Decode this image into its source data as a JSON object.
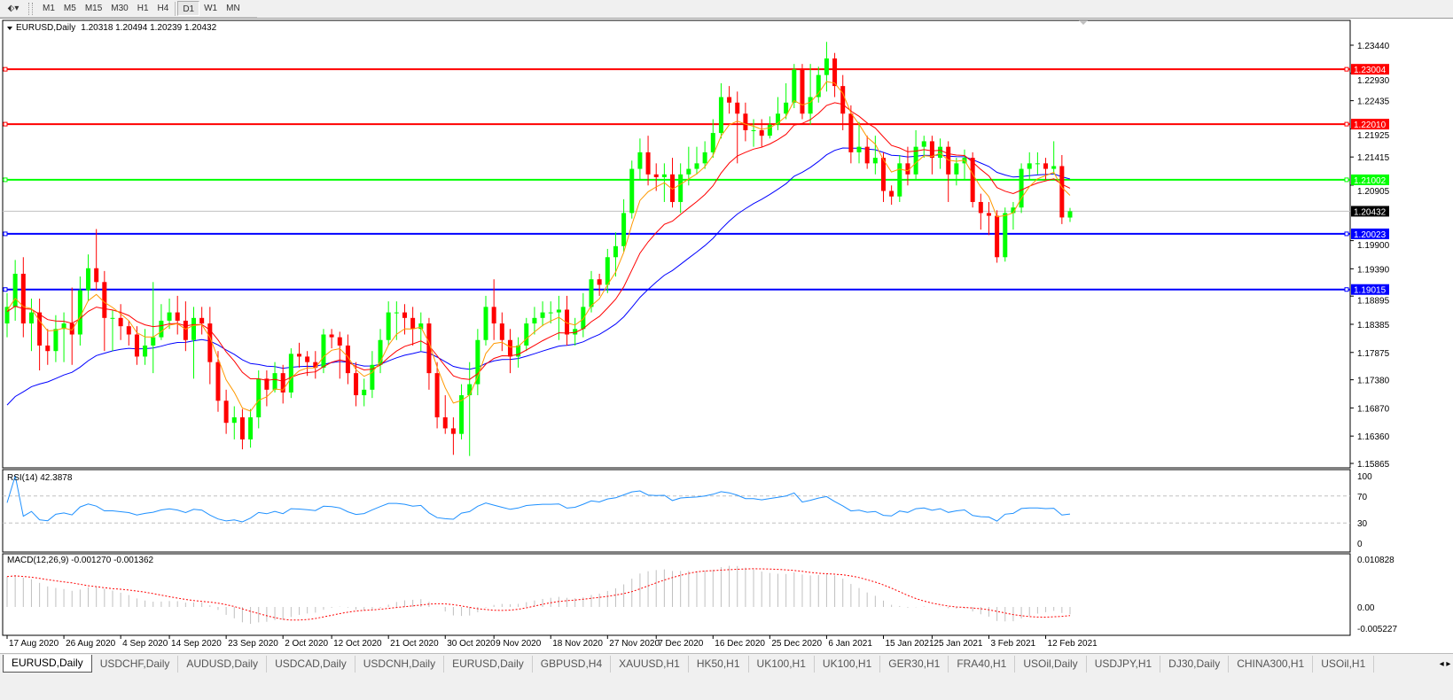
{
  "toolbar": {
    "icons": [
      "cursor-arrow-icon",
      "dropdown-arrow-icon"
    ],
    "timeframes": [
      "M1",
      "M5",
      "M15",
      "M30",
      "H1",
      "H4",
      "D1",
      "W1",
      "MN"
    ],
    "active_timeframe": "D1"
  },
  "chart": {
    "title": "EURUSD,Daily",
    "ohlc_text": "1.20318 1.20494 1.20239 1.20432",
    "colors": {
      "bull": "#00ff00",
      "bear": "#ff0000",
      "ma_fast": "#ff9900",
      "ma_mid": "#ff0000",
      "ma_slow": "#0000ff",
      "rsi": "#1e90ff",
      "macd_hist": "#c0c0c0",
      "macd_signal": "#ff0000",
      "bid_line": "#c0c0c0"
    },
    "price_ticks": [
      "1.23440",
      "1.22930",
      "1.22435",
      "1.21925",
      "1.21415",
      "1.20905",
      "1.19900",
      "1.19390",
      "1.18895",
      "1.18385",
      "1.17875",
      "1.17380",
      "1.16870",
      "1.16360",
      "1.15865"
    ],
    "hlines": [
      {
        "price": "1.23004",
        "color": "#ff0000"
      },
      {
        "price": "1.22010",
        "color": "#ff0000"
      },
      {
        "price": "1.21002",
        "color": "#00ff00"
      },
      {
        "price": "1.20023",
        "color": "#0000ff"
      },
      {
        "price": "1.19015",
        "color": "#0000ff"
      }
    ],
    "bid": {
      "price": "1.20432",
      "color": "#000000"
    }
  },
  "rsi": {
    "label": "RSI(14) 42.3878",
    "period": 14,
    "levels": [
      "100",
      "70",
      "30",
      "0"
    ]
  },
  "macd": {
    "label": "MACD(12,26,9) -0.001270 -0.001362",
    "fast": 12,
    "slow": 26,
    "signal": 9,
    "ticks": [
      "0.010828",
      "0.00",
      "-0.005227"
    ]
  },
  "chart_data": {
    "type": "candlestick",
    "symbol": "EURUSD",
    "timeframe": "Daily",
    "ylim": [
      1.15865,
      1.2344
    ],
    "x_tick_labels": [
      "17 Aug 2020",
      "26 Aug 2020",
      "4 Sep 2020",
      "14 Sep 2020",
      "23 Sep 2020",
      "2 Oct 2020",
      "12 Oct 2020",
      "21 Oct 2020",
      "30 Oct 2020",
      "9 Nov 2020",
      "18 Nov 2020",
      "27 Nov 2020",
      "7 Dec 2020",
      "16 Dec 2020",
      "25 Dec 2020",
      "6 Jan 2021",
      "15 Jan 2021",
      "25 Jan 2021",
      "3 Feb 2021",
      "12 Feb 2021"
    ],
    "candles": [
      [
        "17 Aug 2020",
        1.184,
        1.1895,
        1.1815,
        1.187
      ],
      [
        "18 Aug 2020",
        1.187,
        1.1955,
        1.1845,
        1.193
      ],
      [
        "19 Aug 2020",
        1.193,
        1.196,
        1.1815,
        1.184
      ],
      [
        "20 Aug 2020",
        1.184,
        1.1885,
        1.179,
        1.186
      ],
      [
        "21 Aug 2020",
        1.186,
        1.1885,
        1.1755,
        1.18
      ],
      [
        "24 Aug 2020",
        1.18,
        1.183,
        1.1765,
        1.179
      ],
      [
        "25 Aug 2020",
        1.179,
        1.1855,
        1.177,
        1.183
      ],
      [
        "26 Aug 2020",
        1.183,
        1.186,
        1.177,
        1.184
      ],
      [
        "27 Aug 2020",
        1.184,
        1.1905,
        1.1765,
        1.182
      ],
      [
        "28 Aug 2020",
        1.182,
        1.1925,
        1.18,
        1.19
      ],
      [
        "31 Aug 2020",
        1.19,
        1.1965,
        1.188,
        1.194
      ],
      [
        "1 Sep 2020",
        1.194,
        1.2011,
        1.19,
        1.1915
      ],
      [
        "2 Sep 2020",
        1.1915,
        1.1935,
        1.179,
        1.185
      ],
      [
        "3 Sep 2020",
        1.185,
        1.1865,
        1.179,
        1.185
      ],
      [
        "4 Sep 2020",
        1.185,
        1.1875,
        1.181,
        1.1835
      ],
      [
        "7 Sep 2020",
        1.1835,
        1.1845,
        1.18,
        1.182
      ],
      [
        "8 Sep 2020",
        1.182,
        1.1835,
        1.1765,
        1.178
      ],
      [
        "9 Sep 2020",
        1.178,
        1.183,
        1.1765,
        1.18
      ],
      [
        "10 Sep 2020",
        1.18,
        1.1915,
        1.175,
        1.1815
      ],
      [
        "11 Sep 2020",
        1.1815,
        1.1875,
        1.181,
        1.1845
      ],
      [
        "14 Sep 2020",
        1.1845,
        1.1885,
        1.183,
        1.186
      ],
      [
        "15 Sep 2020",
        1.186,
        1.189,
        1.182,
        1.1845
      ],
      [
        "16 Sep 2020",
        1.1845,
        1.188,
        1.179,
        1.181
      ],
      [
        "17 Sep 2020",
        1.181,
        1.187,
        1.174,
        1.185
      ],
      [
        "18 Sep 2020",
        1.185,
        1.187,
        1.182,
        1.184
      ],
      [
        "21 Sep 2020",
        1.184,
        1.187,
        1.173,
        1.177
      ],
      [
        "22 Sep 2020",
        1.177,
        1.179,
        1.168,
        1.17
      ],
      [
        "23 Sep 2020",
        1.17,
        1.172,
        1.164,
        1.166
      ],
      [
        "24 Sep 2020",
        1.166,
        1.169,
        1.163,
        1.167
      ],
      [
        "25 Sep 2020",
        1.167,
        1.1685,
        1.1612,
        1.163
      ],
      [
        "28 Sep 2020",
        1.163,
        1.1685,
        1.1615,
        1.167
      ],
      [
        "29 Sep 2020",
        1.167,
        1.1755,
        1.165,
        1.174
      ],
      [
        "30 Sep 2020",
        1.174,
        1.1755,
        1.169,
        1.172
      ],
      [
        "1 Oct 2020",
        1.172,
        1.177,
        1.1715,
        1.175
      ],
      [
        "2 Oct 2020",
        1.175,
        1.1765,
        1.1695,
        1.1715
      ],
      [
        "5 Oct 2020",
        1.1715,
        1.1795,
        1.1705,
        1.1785
      ],
      [
        "6 Oct 2020",
        1.1785,
        1.1805,
        1.176,
        1.178
      ],
      [
        "7 Oct 2020",
        1.178,
        1.179,
        1.1745,
        1.177
      ],
      [
        "8 Oct 2020",
        1.177,
        1.179,
        1.174,
        1.176
      ],
      [
        "9 Oct 2020",
        1.176,
        1.183,
        1.175,
        1.182
      ],
      [
        "12 Oct 2020",
        1.182,
        1.183,
        1.1795,
        1.1815
      ],
      [
        "13 Oct 2020",
        1.1815,
        1.1825,
        1.174,
        1.18
      ],
      [
        "14 Oct 2020",
        1.18,
        1.182,
        1.173,
        1.175
      ],
      [
        "15 Oct 2020",
        1.175,
        1.177,
        1.169,
        1.171
      ],
      [
        "16 Oct 2020",
        1.171,
        1.174,
        1.169,
        1.172
      ],
      [
        "19 Oct 2020",
        1.172,
        1.179,
        1.1705,
        1.1765
      ],
      [
        "20 Oct 2020",
        1.1765,
        1.183,
        1.175,
        1.181
      ],
      [
        "21 Oct 2020",
        1.181,
        1.188,
        1.18,
        1.186
      ],
      [
        "22 Oct 2020",
        1.186,
        1.188,
        1.181,
        1.186
      ],
      [
        "23 Oct 2020",
        1.186,
        1.1875,
        1.182,
        1.185
      ],
      [
        "26 Oct 2020",
        1.185,
        1.187,
        1.18,
        1.183
      ],
      [
        "27 Oct 2020",
        1.183,
        1.186,
        1.179,
        1.184
      ],
      [
        "28 Oct 2020",
        1.184,
        1.185,
        1.172,
        1.175
      ],
      [
        "29 Oct 2020",
        1.175,
        1.177,
        1.165,
        1.167
      ],
      [
        "30 Oct 2020",
        1.167,
        1.171,
        1.164,
        1.165
      ],
      [
        "2 Nov 2020",
        1.165,
        1.167,
        1.1602,
        1.164
      ],
      [
        "3 Nov 2020",
        1.164,
        1.173,
        1.163,
        1.171
      ],
      [
        "4 Nov 2020",
        1.171,
        1.177,
        1.16,
        1.173
      ],
      [
        "5 Nov 2020",
        1.173,
        1.183,
        1.171,
        1.181
      ],
      [
        "6 Nov 2020",
        1.181,
        1.189,
        1.18,
        1.187
      ],
      [
        "9 Nov 2020",
        1.187,
        1.192,
        1.181,
        1.184
      ],
      [
        "10 Nov 2020",
        1.184,
        1.186,
        1.179,
        1.181
      ],
      [
        "11 Nov 2020",
        1.181,
        1.183,
        1.175,
        1.178
      ],
      [
        "12 Nov 2020",
        1.178,
        1.1815,
        1.176,
        1.18
      ],
      [
        "13 Nov 2020",
        1.18,
        1.185,
        1.179,
        1.184
      ],
      [
        "16 Nov 2020",
        1.184,
        1.187,
        1.182,
        1.185
      ],
      [
        "17 Nov 2020",
        1.185,
        1.188,
        1.1835,
        1.186
      ],
      [
        "18 Nov 2020",
        1.186,
        1.188,
        1.184,
        1.186
      ],
      [
        "19 Nov 2020",
        1.186,
        1.189,
        1.181,
        1.1865
      ],
      [
        "20 Nov 2020",
        1.1865,
        1.189,
        1.18,
        1.182
      ],
      [
        "23 Nov 2020",
        1.182,
        1.185,
        1.18,
        1.183
      ],
      [
        "24 Nov 2020",
        1.183,
        1.1895,
        1.1815,
        1.187
      ],
      [
        "25 Nov 2020",
        1.187,
        1.1935,
        1.186,
        1.192
      ],
      [
        "26 Nov 2020",
        1.192,
        1.193,
        1.189,
        1.191
      ],
      [
        "27 Nov 2020",
        1.191,
        1.1975,
        1.1895,
        1.196
      ],
      [
        "30 Nov 2020",
        1.196,
        1.2005,
        1.1925,
        1.198
      ],
      [
        "1 Dec 2020",
        1.198,
        1.2065,
        1.197,
        1.204
      ],
      [
        "2 Dec 2020",
        1.204,
        1.2135,
        1.203,
        1.212
      ],
      [
        "3 Dec 2020",
        1.212,
        1.2175,
        1.21,
        1.215
      ],
      [
        "4 Dec 2020",
        1.215,
        1.218,
        1.209,
        1.211
      ],
      [
        "7 Dec 2020",
        1.211,
        1.213,
        1.208,
        1.2105
      ],
      [
        "8 Dec 2020",
        1.2105,
        1.213,
        1.206,
        1.211
      ],
      [
        "9 Dec 2020",
        1.211,
        1.214,
        1.205,
        1.206
      ],
      [
        "10 Dec 2020",
        1.206,
        1.213,
        1.204,
        1.211
      ],
      [
        "11 Dec 2020",
        1.211,
        1.216,
        1.209,
        1.212
      ],
      [
        "14 Dec 2020",
        1.212,
        1.216,
        1.211,
        1.213
      ],
      [
        "15 Dec 2020",
        1.213,
        1.217,
        1.212,
        1.215
      ],
      [
        "16 Dec 2020",
        1.215,
        1.221,
        1.214,
        1.2185
      ],
      [
        "17 Dec 2020",
        1.2185,
        1.2275,
        1.2175,
        1.225
      ],
      [
        "18 Dec 2020",
        1.225,
        1.227,
        1.222,
        1.224
      ],
      [
        "21 Dec 2020",
        1.224,
        1.226,
        1.213,
        1.222
      ],
      [
        "22 Dec 2020",
        1.222,
        1.224,
        1.217,
        1.219
      ],
      [
        "23 Dec 2020",
        1.219,
        1.221,
        1.216,
        1.219
      ],
      [
        "24 Dec 2020",
        1.219,
        1.221,
        1.216,
        1.218
      ],
      [
        "25 Dec 2020",
        1.218,
        1.2215,
        1.2175,
        1.22
      ],
      [
        "28 Dec 2020",
        1.22,
        1.225,
        1.219,
        1.222
      ],
      [
        "29 Dec 2020",
        1.222,
        1.2275,
        1.221,
        1.224
      ],
      [
        "30 Dec 2020",
        1.224,
        1.231,
        1.223,
        1.23
      ],
      [
        "31 Dec 2020",
        1.23,
        1.231,
        1.221,
        1.222
      ],
      [
        "4 Jan 2021",
        1.222,
        1.231,
        1.22,
        1.225
      ],
      [
        "5 Jan 2021",
        1.225,
        1.2305,
        1.224,
        1.229
      ],
      [
        "6 Jan 2021",
        1.229,
        1.235,
        1.226,
        1.232
      ],
      [
        "7 Jan 2021",
        1.232,
        1.233,
        1.225,
        1.227
      ],
      [
        "8 Jan 2021",
        1.227,
        1.229,
        1.219,
        1.222
      ],
      [
        "11 Jan 2021",
        1.222,
        1.2235,
        1.213,
        1.215
      ],
      [
        "12 Jan 2021",
        1.215,
        1.2205,
        1.213,
        1.216
      ],
      [
        "13 Jan 2021",
        1.216,
        1.218,
        1.212,
        1.213
      ],
      [
        "14 Jan 2021",
        1.213,
        1.218,
        1.211,
        1.214
      ],
      [
        "15 Jan 2021",
        1.214,
        1.215,
        1.206,
        1.208
      ],
      [
        "18 Jan 2021",
        1.208,
        1.209,
        1.2055,
        1.207
      ],
      [
        "19 Jan 2021",
        1.207,
        1.2145,
        1.206,
        1.213
      ],
      [
        "20 Jan 2021",
        1.213,
        1.216,
        1.209,
        1.211
      ],
      [
        "21 Jan 2021",
        1.211,
        1.219,
        1.21,
        1.216
      ],
      [
        "22 Jan 2021",
        1.216,
        1.218,
        1.214,
        1.217
      ],
      [
        "25 Jan 2021",
        1.217,
        1.218,
        1.211,
        1.214
      ],
      [
        "26 Jan 2021",
        1.214,
        1.2175,
        1.212,
        1.216
      ],
      [
        "27 Jan 2021",
        1.216,
        1.217,
        1.206,
        1.211
      ],
      [
        "28 Jan 2021",
        1.211,
        1.214,
        1.209,
        1.213
      ],
      [
        "29 Jan 2021",
        1.213,
        1.2155,
        1.21,
        1.214
      ],
      [
        "1 Feb 2021",
        1.214,
        1.215,
        1.205,
        1.206
      ],
      [
        "2 Feb 2021",
        1.206,
        1.2075,
        1.201,
        1.204
      ],
      [
        "3 Feb 2021",
        1.204,
        1.206,
        1.2,
        1.2035
      ],
      [
        "4 Feb 2021",
        1.2035,
        1.2045,
        1.195,
        1.196
      ],
      [
        "5 Feb 2021",
        1.196,
        1.205,
        1.1952,
        1.204
      ],
      [
        "8 Feb 2021",
        1.204,
        1.206,
        1.201,
        1.205
      ],
      [
        "9 Feb 2021",
        1.205,
        1.213,
        1.204,
        1.212
      ],
      [
        "10 Feb 2021",
        1.212,
        1.215,
        1.21,
        1.213
      ],
      [
        "11 Feb 2021",
        1.213,
        1.215,
        1.211,
        1.213
      ],
      [
        "12 Feb 2021",
        1.213,
        1.214,
        1.21,
        1.212
      ],
      [
        "15 Feb 2021",
        1.212,
        1.217,
        1.211,
        1.2125
      ],
      [
        "16 Feb 2021",
        1.2125,
        1.2145,
        1.202,
        1.2032
      ],
      [
        "17 Feb 2021",
        1.20318,
        1.20494,
        1.20239,
        1.20432
      ]
    ]
  },
  "tabs": [
    {
      "label": "EURUSD,Daily",
      "active": true
    },
    {
      "label": "USDCHF,Daily"
    },
    {
      "label": "AUDUSD,Daily"
    },
    {
      "label": "USDCAD,Daily"
    },
    {
      "label": "USDCNH,Daily"
    },
    {
      "label": "EURUSD,Daily"
    },
    {
      "label": "GBPUSD,H4"
    },
    {
      "label": "XAUUSD,H1"
    },
    {
      "label": "HK50,H1"
    },
    {
      "label": "UK100,H1"
    },
    {
      "label": "UK100,H1"
    },
    {
      "label": "GER30,H1"
    },
    {
      "label": "FRA40,H1"
    },
    {
      "label": "USOil,Daily"
    },
    {
      "label": "USDJPY,H1"
    },
    {
      "label": "DJ30,Daily"
    },
    {
      "label": "CHINA300,H1"
    },
    {
      "label": "USOil,H1"
    }
  ]
}
